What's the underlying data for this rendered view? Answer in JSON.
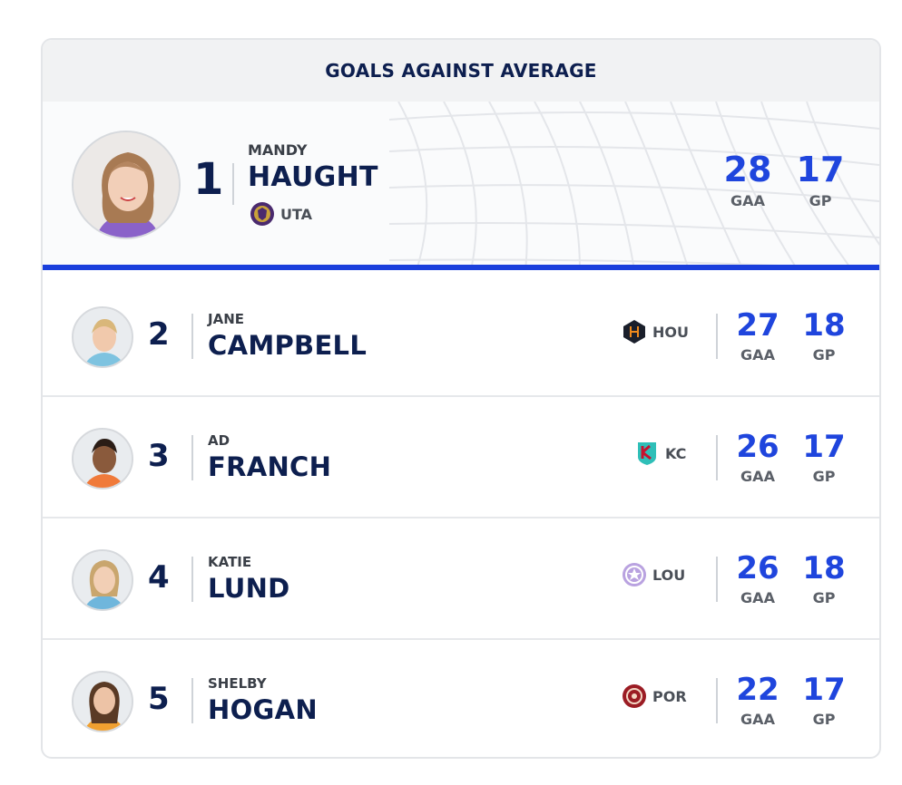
{
  "title": "GOALS AGAINST AVERAGE",
  "leader": {
    "rank": "1",
    "first": "MANDY",
    "last": "HAUGHT",
    "team": "UTA",
    "gaa": "28",
    "gp": "17",
    "gaa_label": "GAA",
    "gp_label": "GP"
  },
  "rows": [
    {
      "rank": "2",
      "first": "JANE",
      "last": "CAMPBELL",
      "team": "HOU",
      "gaa": "27",
      "gp": "18",
      "gaa_label": "GAA",
      "gp_label": "GP"
    },
    {
      "rank": "3",
      "first": "AD",
      "last": "FRANCH",
      "team": "KC",
      "gaa": "26",
      "gp": "17",
      "gaa_label": "GAA",
      "gp_label": "GP"
    },
    {
      "rank": "4",
      "first": "KATIE",
      "last": "LUND",
      "team": "LOU",
      "gaa": "26",
      "gp": "18",
      "gaa_label": "GAA",
      "gp_label": "GP"
    },
    {
      "rank": "5",
      "first": "SHELBY",
      "last": "HOGAN",
      "team": "POR",
      "gaa": "22",
      "gp": "17",
      "gaa_label": "GAA",
      "gp_label": "GP"
    }
  ],
  "colors": {
    "navy": "#0d1f4f",
    "accent_blue": "#1f45dd",
    "divider_blue": "#1a3fdc"
  },
  "icons": {
    "uta": "utah-royals-crest-icon",
    "hou": "houston-dash-crest-icon",
    "kc": "kc-current-crest-icon",
    "lou": "racing-louisville-crest-icon",
    "por": "portland-thorns-crest-icon"
  }
}
